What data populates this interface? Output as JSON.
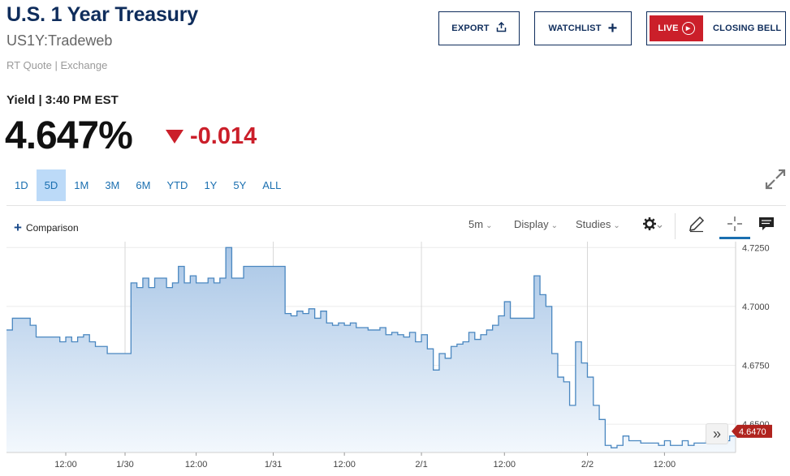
{
  "header": {
    "title": "U.S. 1 Year Treasury",
    "symbol": "US1Y:Tradeweb",
    "quote_type": "RT Quote | Exchange"
  },
  "buttons": {
    "export": "EXPORT",
    "watchlist": "WATCHLIST",
    "live": "LIVE",
    "closing_bell": "CLOSING BELL"
  },
  "quote": {
    "label": "Yield | 3:40 PM EST",
    "price": "4.647%",
    "change": "-0.014"
  },
  "ranges": [
    "1D",
    "5D",
    "1M",
    "3M",
    "6M",
    "YTD",
    "1Y",
    "5Y",
    "ALL"
  ],
  "active_range": "5D",
  "toolbar": {
    "comparison": "Comparison",
    "interval": "5m",
    "display": "Display",
    "studies": "Studies"
  },
  "colors": {
    "brand": "#0f2d5c",
    "negative": "#cb1f2a",
    "link": "#1a6fb0",
    "line": "#4a87c0"
  },
  "chart_data": {
    "type": "area",
    "ylim": [
      4.638,
      4.7275
    ],
    "y_ticks": [
      "4.7250",
      "4.7000",
      "4.6750",
      "4.6500"
    ],
    "x_tick_labels": [
      "12:00",
      "1/30",
      "12:00",
      "1/31",
      "12:00",
      "2/1",
      "12:00",
      "2/2",
      "12:00"
    ],
    "last_value_label": "4.6470",
    "series": [
      {
        "values": [
          4.69,
          4.695,
          4.695,
          4.695,
          4.692,
          4.687,
          4.687,
          4.687,
          4.687,
          4.685,
          4.687,
          4.685,
          4.687,
          4.688,
          4.685,
          4.683,
          4.683,
          4.68,
          4.68,
          4.68,
          4.68,
          4.71,
          4.708,
          4.712,
          4.708,
          4.712,
          4.712,
          4.708,
          4.71,
          4.717,
          4.71,
          4.713,
          4.71,
          4.71,
          4.712,
          4.71,
          4.712,
          4.725,
          4.712,
          4.712,
          4.717,
          4.717,
          4.717,
          4.717,
          4.717,
          4.717,
          4.717,
          4.697,
          4.696,
          4.698,
          4.697,
          4.699,
          4.695,
          4.698,
          4.693,
          4.692,
          4.693,
          4.692,
          4.693,
          4.691,
          4.691,
          4.69,
          4.69,
          4.691,
          4.688,
          4.689,
          4.688,
          4.687,
          4.689,
          4.685,
          4.688,
          4.682,
          4.673,
          4.68,
          4.678,
          4.683,
          4.684,
          4.685,
          4.689,
          4.686,
          4.688,
          4.69,
          4.692,
          4.696,
          4.702,
          4.695,
          4.695,
          4.695,
          4.695,
          4.713,
          4.705,
          4.7,
          4.68,
          4.67,
          4.668,
          4.658,
          4.685,
          4.676,
          4.67,
          4.658,
          4.652,
          4.641,
          4.64,
          4.641,
          4.645,
          4.643,
          4.643,
          4.642,
          4.642,
          4.642,
          4.641,
          4.643,
          4.641,
          4.641,
          4.643,
          4.641,
          4.642,
          4.642,
          4.643,
          4.645,
          4.642,
          4.643,
          4.645,
          4.647
        ]
      }
    ]
  }
}
